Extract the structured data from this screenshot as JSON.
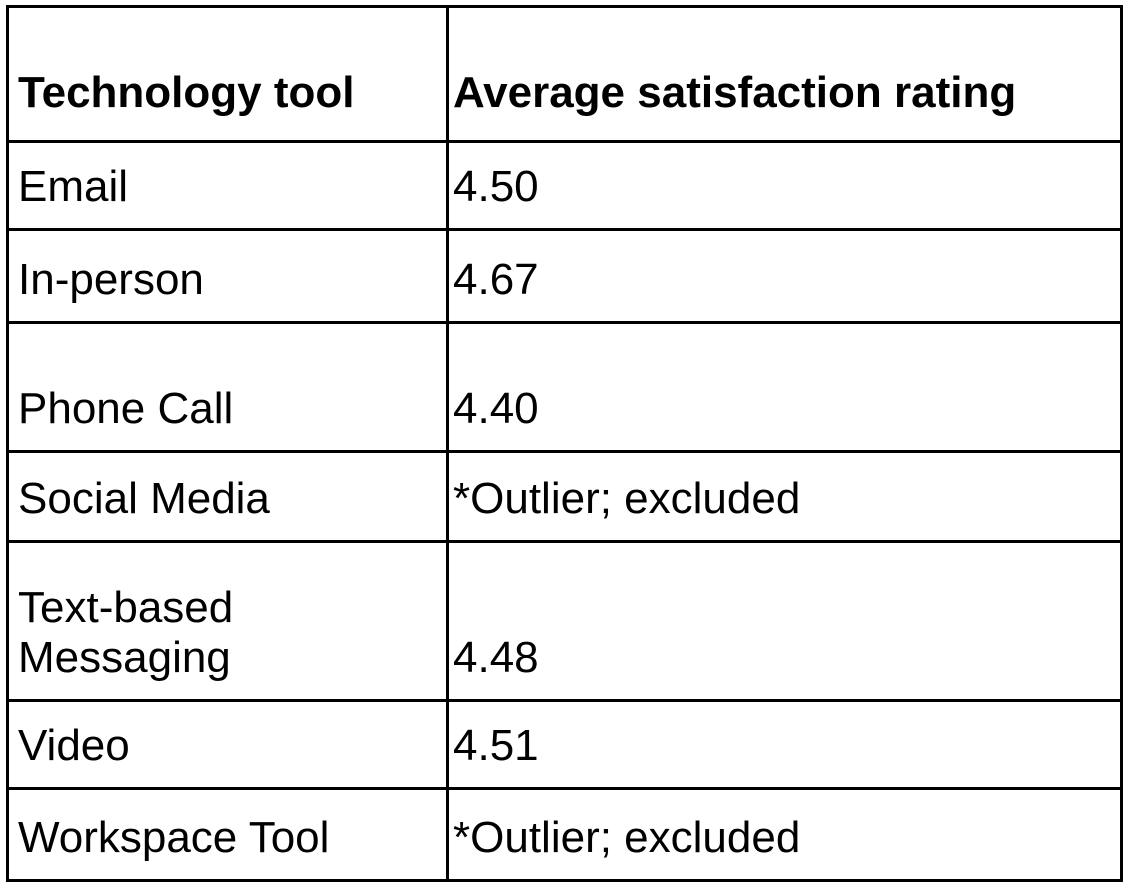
{
  "table": {
    "headers": [
      "Technology tool",
      "Average satisfaction rating"
    ],
    "rows": [
      {
        "tool": "Email",
        "rating": "4.50"
      },
      {
        "tool": "In-person",
        "rating": "4.67"
      },
      {
        "tool": "Phone Call",
        "rating": "4.40"
      },
      {
        "tool": "Social Media",
        "rating": "*Outlier; excluded"
      },
      {
        "tool": "Text-based\nMessaging",
        "rating": "4.48"
      },
      {
        "tool": "Video",
        "rating": "4.51"
      },
      {
        "tool": "Workspace Tool",
        "rating": "*Outlier; excluded"
      }
    ]
  }
}
